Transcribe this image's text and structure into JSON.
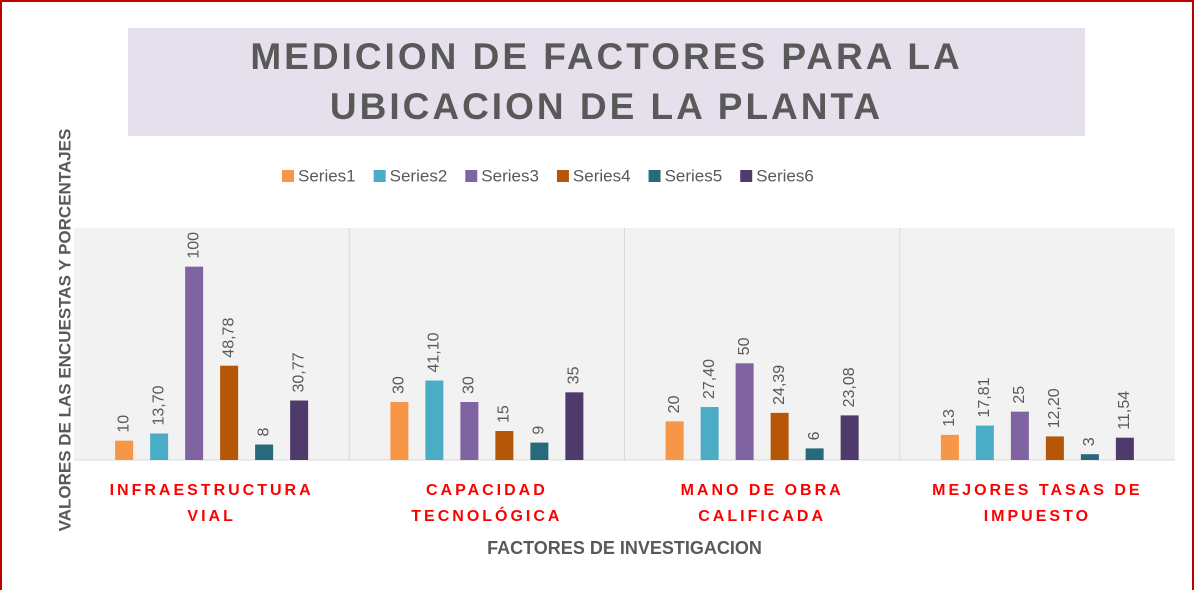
{
  "chart_data": {
    "type": "bar",
    "title": "MEDICION DE FACTORES PARA LA  UBICACION DE LA PLANTA",
    "x_label": "FACTORES DE INVESTIGACION",
    "y_label": "VALORES DE LAS ENCUESTAS Y PORCENTAJES",
    "categories": [
      "INFRAESTRUCTURA VIAL",
      "CAPACIDAD TECNOLÓGICA",
      "MANO DE OBRA CALIFICADA",
      "MEJORES TASAS DE IMPUESTO"
    ],
    "series": [
      {
        "name": "Series1",
        "color": "#f79646",
        "values": [
          10,
          30,
          20,
          13
        ]
      },
      {
        "name": "Series2",
        "color": "#4bacc6",
        "values": [
          13.7,
          41.1,
          27.4,
          17.81
        ],
        "value_labels": [
          "13,70",
          "41,10",
          "27,40",
          "17,81"
        ]
      },
      {
        "name": "Series3",
        "color": "#8064a2",
        "values": [
          100,
          30,
          50,
          25
        ]
      },
      {
        "name": "Series4",
        "color": "#b65708",
        "values": [
          48.78,
          15,
          24.39,
          12.2
        ],
        "value_labels": [
          "48,78",
          "15",
          "24,39",
          "12,20"
        ]
      },
      {
        "name": "Series5",
        "color": "#276a7c",
        "values": [
          8,
          9,
          6,
          3
        ]
      },
      {
        "name": "Series6",
        "color": "#4f3b6b",
        "values": [
          30.77,
          35,
          23.08,
          11.54
        ],
        "value_labels": [
          "30,77",
          "35",
          "23,08",
          "11,54"
        ]
      }
    ],
    "ylim": [
      0,
      120
    ],
    "legend": "top"
  }
}
